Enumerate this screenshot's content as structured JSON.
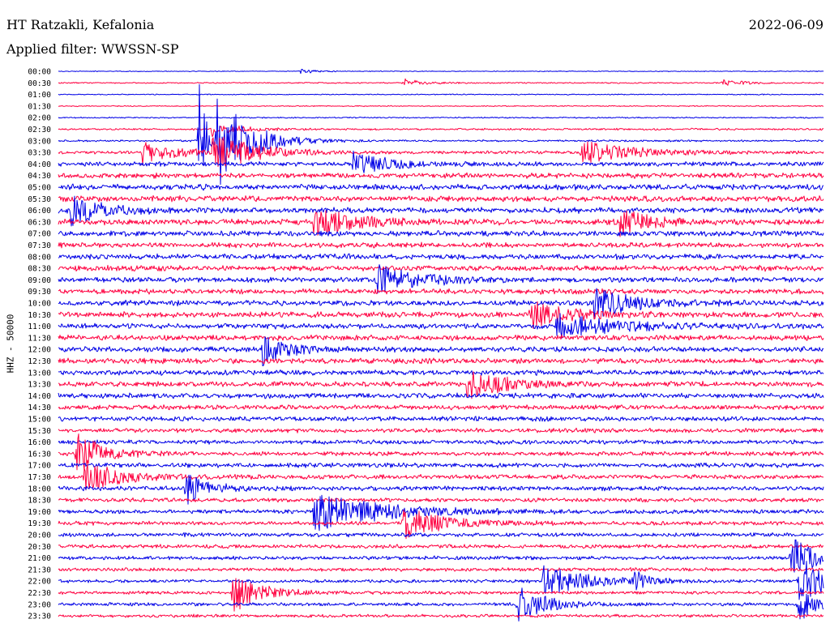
{
  "header": {
    "station": "HT Ratzakli, Kefalonia",
    "date": "2022-06-09",
    "filter": "Applied filter: WWSSN-SP"
  },
  "chart_data": {
    "type": "line",
    "title": "HT Ratzakli, Kefalonia",
    "date": "2022-06-09",
    "filter": "WWSSN-SP",
    "ylabel": "HHZ - 50000",
    "row_interval_minutes": 30,
    "row_labels": [
      "00:00",
      "00:30",
      "01:00",
      "01:30",
      "02:00",
      "02:30",
      "03:00",
      "03:30",
      "04:00",
      "04:30",
      "05:00",
      "05:30",
      "06:00",
      "06:30",
      "07:00",
      "07:30",
      "08:00",
      "08:30",
      "09:00",
      "09:30",
      "10:00",
      "10:30",
      "11:00",
      "11:30",
      "12:00",
      "12:30",
      "13:00",
      "13:30",
      "14:00",
      "14:30",
      "15:00",
      "15:30",
      "16:00",
      "16:30",
      "17:00",
      "17:30",
      "18:00",
      "18:30",
      "19:00",
      "19:30",
      "20:00",
      "20:30",
      "21:00",
      "21:30",
      "22:00",
      "22:30",
      "23:00",
      "23:30"
    ],
    "colors": {
      "even_rows": "#0000e6",
      "odd_rows": "#ff0040"
    },
    "noise_level": [
      0.4,
      0.6,
      0.5,
      0.5,
      0.6,
      0.9,
      0.9,
      1.5,
      2.2,
      2.6,
      2.8,
      2.8,
      2.8,
      2.8,
      2.6,
      2.5,
      2.6,
      2.6,
      2.5,
      2.5,
      2.6,
      2.7,
      2.6,
      2.6,
      2.6,
      2.6,
      2.5,
      2.5,
      2.5,
      2.3,
      2.3,
      2.1,
      2.1,
      2.1,
      2.2,
      2.2,
      2.2,
      2.0,
      2.0,
      1.9,
      1.9,
      1.9,
      1.8,
      1.7,
      1.6,
      1.6,
      1.6,
      1.5
    ],
    "events": [
      {
        "row": 0,
        "minute": 9.5,
        "amplitude": 3,
        "duration": 0.5
      },
      {
        "row": 1,
        "minute": 13.5,
        "amplitude": 5,
        "duration": 0.8
      },
      {
        "row": 1,
        "minute": 26.0,
        "amplitude": 4,
        "duration": 0.8
      },
      {
        "row": 5,
        "minute": 6.0,
        "amplitude": 9,
        "duration": 1.0
      },
      {
        "row": 6,
        "minute": 5.5,
        "amplitude": 120,
        "duration": 0.2
      },
      {
        "row": 6,
        "minute": 6.2,
        "amplitude": 60,
        "duration": 1.2
      },
      {
        "row": 7,
        "minute": 3.3,
        "amplitude": 14,
        "duration": 1.2
      },
      {
        "row": 7,
        "minute": 6.0,
        "amplitude": 25,
        "duration": 1.5
      },
      {
        "row": 7,
        "minute": 20.5,
        "amplitude": 14,
        "duration": 2.0
      },
      {
        "row": 8,
        "minute": 11.5,
        "amplitude": 16,
        "duration": 1.2
      },
      {
        "row": 12,
        "minute": 0.5,
        "amplitude": 18,
        "duration": 1.2
      },
      {
        "row": 13,
        "minute": 10.0,
        "amplitude": 18,
        "duration": 1.5
      },
      {
        "row": 13,
        "minute": 22.0,
        "amplitude": 16,
        "duration": 1.2
      },
      {
        "row": 18,
        "minute": 12.5,
        "amplitude": 18,
        "duration": 1.5
      },
      {
        "row": 20,
        "minute": 21.0,
        "amplitude": 18,
        "duration": 1.5
      },
      {
        "row": 21,
        "minute": 18.5,
        "amplitude": 16,
        "duration": 1.5
      },
      {
        "row": 22,
        "minute": 19.5,
        "amplitude": 16,
        "duration": 2.0
      },
      {
        "row": 24,
        "minute": 8.0,
        "amplitude": 18,
        "duration": 1.0
      },
      {
        "row": 27,
        "minute": 16.0,
        "amplitude": 18,
        "duration": 1.5
      },
      {
        "row": 33,
        "minute": 0.7,
        "amplitude": 26,
        "duration": 1.0
      },
      {
        "row": 35,
        "minute": 1.0,
        "amplitude": 22,
        "duration": 1.2
      },
      {
        "row": 36,
        "minute": 5.0,
        "amplitude": 20,
        "duration": 0.8
      },
      {
        "row": 38,
        "minute": 10.0,
        "amplitude": 24,
        "duration": 2.5
      },
      {
        "row": 39,
        "minute": 13.5,
        "amplitude": 20,
        "duration": 1.5
      },
      {
        "row": 42,
        "minute": 28.7,
        "amplitude": 26,
        "duration": 1.0
      },
      {
        "row": 44,
        "minute": 19.0,
        "amplitude": 20,
        "duration": 1.5
      },
      {
        "row": 44,
        "minute": 22.5,
        "amplitude": 16,
        "duration": 0.5
      },
      {
        "row": 44,
        "minute": 29.0,
        "amplitude": 30,
        "duration": 1.2
      },
      {
        "row": 45,
        "minute": 6.8,
        "amplitude": 28,
        "duration": 1.0
      },
      {
        "row": 46,
        "minute": 18.0,
        "amplitude": 24,
        "duration": 1.0
      },
      {
        "row": 46,
        "minute": 29.0,
        "amplitude": 22,
        "duration": 0.8
      }
    ]
  }
}
